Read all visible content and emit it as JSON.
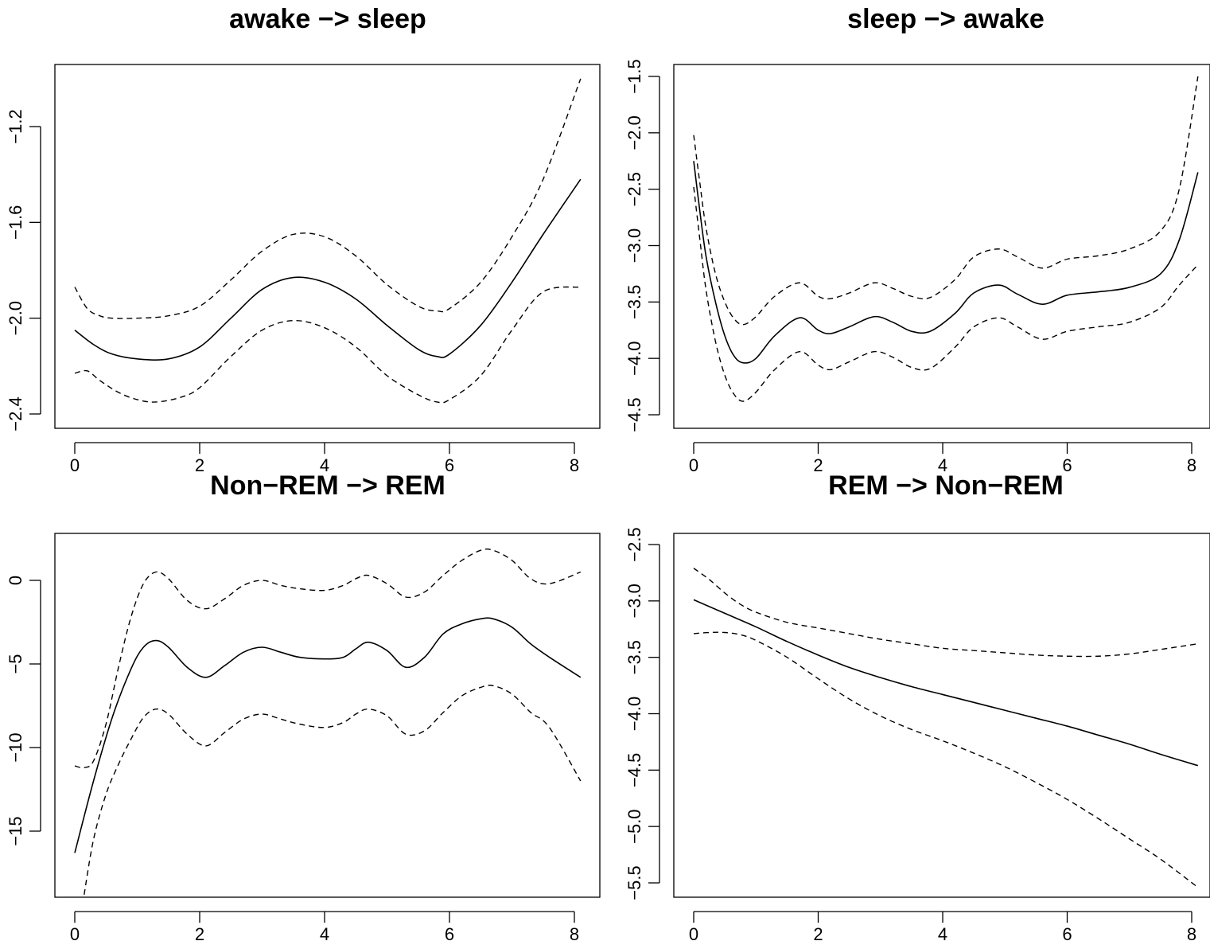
{
  "chart_data": [
    {
      "type": "line",
      "title": "awake −> sleep",
      "xlabel": "",
      "ylabel": "",
      "xlim": [
        0,
        8.1
      ],
      "ylim": [
        -2.4,
        -1.0
      ],
      "x_ticks": [
        "0",
        "2",
        "4",
        "6",
        "8"
      ],
      "y_ticks": [
        "−2.4",
        "−2.0",
        "−1.6",
        "−1.2"
      ],
      "grid": false,
      "series": [
        {
          "style": "solid",
          "x": [
            0,
            0.3,
            0.6,
            1.0,
            1.5,
            2.0,
            2.5,
            3.0,
            3.5,
            4.0,
            4.5,
            5.0,
            5.5,
            5.8,
            6.0,
            6.5,
            7.0,
            7.5,
            8.1
          ],
          "y": [
            -2.05,
            -2.11,
            -2.15,
            -2.17,
            -2.17,
            -2.12,
            -2.0,
            -1.88,
            -1.83,
            -1.85,
            -1.92,
            -2.03,
            -2.13,
            -2.16,
            -2.15,
            -2.03,
            -1.85,
            -1.65,
            -1.42
          ]
        },
        {
          "style": "dashed",
          "x": [
            0,
            0.2,
            0.4,
            0.6,
            1.0,
            1.5,
            2.0,
            2.5,
            3.0,
            3.5,
            4.0,
            4.5,
            5.0,
            5.5,
            5.8,
            6.0,
            6.5,
            7.0,
            7.5,
            8.1
          ],
          "y": [
            -1.87,
            -1.96,
            -1.99,
            -2.0,
            -2.0,
            -1.99,
            -1.95,
            -1.84,
            -1.72,
            -1.65,
            -1.66,
            -1.74,
            -1.86,
            -1.95,
            -1.97,
            -1.96,
            -1.85,
            -1.66,
            -1.42,
            -1.0
          ]
        },
        {
          "style": "dashed",
          "x": [
            0,
            0.2,
            0.4,
            0.7,
            1.0,
            1.3,
            1.7,
            2.0,
            2.5,
            3.0,
            3.5,
            4.0,
            4.5,
            5.0,
            5.5,
            5.8,
            6.0,
            6.5,
            7.0,
            7.5,
            8.1
          ],
          "y": [
            -2.23,
            -2.22,
            -2.26,
            -2.31,
            -2.34,
            -2.35,
            -2.33,
            -2.29,
            -2.16,
            -2.05,
            -2.01,
            -2.04,
            -2.12,
            -2.24,
            -2.32,
            -2.35,
            -2.34,
            -2.24,
            -2.05,
            -1.89,
            -1.87
          ]
        }
      ]
    },
    {
      "type": "line",
      "title": "sleep −> awake",
      "xlabel": "",
      "ylabel": "",
      "xlim": [
        0,
        8.1
      ],
      "ylim": [
        -4.6,
        -1.5
      ],
      "x_ticks": [
        "0",
        "2",
        "4",
        "6",
        "8"
      ],
      "y_ticks": [
        "−4.5",
        "−4.0",
        "−3.5",
        "−3.0",
        "−2.5",
        "−2.0",
        "−1.5"
      ],
      "grid": false,
      "series": [
        {
          "style": "solid",
          "x": [
            0,
            0.1,
            0.2,
            0.35,
            0.5,
            0.65,
            0.8,
            1.0,
            1.3,
            1.7,
            2.0,
            2.2,
            2.5,
            2.9,
            3.2,
            3.5,
            3.8,
            4.2,
            4.5,
            4.9,
            5.2,
            5.6,
            6.0,
            6.5,
            7.0,
            7.5,
            7.8,
            8.1
          ],
          "y": [
            -2.25,
            -2.7,
            -3.1,
            -3.5,
            -3.8,
            -3.98,
            -4.04,
            -4.0,
            -3.8,
            -3.64,
            -3.75,
            -3.78,
            -3.72,
            -3.63,
            -3.68,
            -3.76,
            -3.76,
            -3.6,
            -3.42,
            -3.35,
            -3.43,
            -3.52,
            -3.44,
            -3.41,
            -3.37,
            -3.25,
            -2.95,
            -2.35
          ]
        },
        {
          "style": "dashed",
          "x": [
            0,
            0.1,
            0.2,
            0.35,
            0.5,
            0.65,
            0.8,
            1.0,
            1.3,
            1.7,
            2.0,
            2.2,
            2.5,
            2.9,
            3.2,
            3.5,
            3.8,
            4.2,
            4.5,
            4.9,
            5.2,
            5.6,
            6.0,
            6.5,
            7.0,
            7.5,
            7.8,
            8.1
          ],
          "y": [
            -2.02,
            -2.45,
            -2.85,
            -3.25,
            -3.5,
            -3.65,
            -3.7,
            -3.63,
            -3.45,
            -3.33,
            -3.45,
            -3.47,
            -3.42,
            -3.33,
            -3.38,
            -3.45,
            -3.46,
            -3.3,
            -3.1,
            -3.03,
            -3.1,
            -3.2,
            -3.12,
            -3.09,
            -3.03,
            -2.87,
            -2.5,
            -1.5
          ]
        },
        {
          "style": "dashed",
          "x": [
            0,
            0.1,
            0.2,
            0.35,
            0.5,
            0.65,
            0.8,
            1.0,
            1.3,
            1.7,
            2.0,
            2.2,
            2.5,
            2.9,
            3.2,
            3.5,
            3.8,
            4.2,
            4.5,
            4.9,
            5.2,
            5.6,
            6.0,
            6.5,
            7.0,
            7.5,
            7.8,
            8.1
          ],
          "y": [
            -2.48,
            -2.95,
            -3.4,
            -3.85,
            -4.15,
            -4.32,
            -4.38,
            -4.3,
            -4.1,
            -3.94,
            -4.06,
            -4.1,
            -4.03,
            -3.94,
            -3.99,
            -4.08,
            -4.09,
            -3.9,
            -3.72,
            -3.64,
            -3.72,
            -3.83,
            -3.76,
            -3.72,
            -3.68,
            -3.55,
            -3.35,
            -3.17
          ]
        }
      ]
    },
    {
      "type": "line",
      "title": "Non−REM −> REM",
      "xlabel": "",
      "ylabel": "",
      "xlim": [
        0,
        8.1
      ],
      "ylim": [
        -19,
        2.5
      ],
      "x_ticks": [
        "0",
        "2",
        "4",
        "6",
        "8"
      ],
      "y_ticks": [
        "−15",
        "−10",
        "−5",
        "0"
      ],
      "grid": false,
      "series": [
        {
          "style": "solid",
          "x": [
            0,
            0.3,
            0.6,
            0.9,
            1.1,
            1.3,
            1.5,
            1.8,
            2.1,
            2.4,
            2.7,
            3.0,
            3.3,
            3.6,
            4.0,
            4.3,
            4.5,
            4.7,
            5.0,
            5.3,
            5.6,
            5.9,
            6.2,
            6.5,
            6.7,
            7.0,
            7.3,
            7.6,
            8.1
          ],
          "y": [
            -16.3,
            -12.0,
            -8.2,
            -5.3,
            -4.0,
            -3.6,
            -4.0,
            -5.2,
            -5.8,
            -5.1,
            -4.3,
            -4.0,
            -4.3,
            -4.6,
            -4.7,
            -4.6,
            -4.1,
            -3.7,
            -4.2,
            -5.2,
            -4.6,
            -3.2,
            -2.6,
            -2.3,
            -2.3,
            -2.8,
            -3.8,
            -4.6,
            -5.8
          ]
        },
        {
          "style": "dashed",
          "x": [
            0,
            0.15,
            0.3,
            0.5,
            0.7,
            0.9,
            1.1,
            1.3,
            1.5,
            1.8,
            2.1,
            2.4,
            2.7,
            3.0,
            3.3,
            3.6,
            4.0,
            4.3,
            4.5,
            4.7,
            5.0,
            5.3,
            5.6,
            5.9,
            6.2,
            6.5,
            6.7,
            7.0,
            7.3,
            7.6,
            8.1
          ],
          "y": [
            -11.1,
            -11.2,
            -10.8,
            -8.6,
            -5.2,
            -2.2,
            -0.2,
            0.5,
            0.1,
            -1.2,
            -1.7,
            -1.1,
            -0.3,
            0.0,
            -0.3,
            -0.5,
            -0.6,
            -0.3,
            0.1,
            0.3,
            -0.2,
            -1.0,
            -0.7,
            0.3,
            1.2,
            1.8,
            1.8,
            1.2,
            0.1,
            -0.2,
            0.5
          ]
        },
        {
          "style": "dashed",
          "x": [
            0.15,
            0.3,
            0.5,
            0.7,
            0.9,
            1.1,
            1.3,
            1.5,
            1.8,
            2.1,
            2.4,
            2.7,
            3.0,
            3.3,
            3.6,
            4.0,
            4.3,
            4.5,
            4.7,
            5.0,
            5.3,
            5.6,
            5.9,
            6.2,
            6.5,
            6.7,
            7.0,
            7.3,
            7.6,
            8.1
          ],
          "y": [
            -18.8,
            -15.5,
            -12.8,
            -11.0,
            -9.5,
            -8.2,
            -7.7,
            -8.0,
            -9.2,
            -9.9,
            -9.1,
            -8.3,
            -8.0,
            -8.3,
            -8.6,
            -8.8,
            -8.5,
            -8.0,
            -7.7,
            -8.1,
            -9.2,
            -9.0,
            -7.9,
            -6.9,
            -6.4,
            -6.3,
            -6.8,
            -7.9,
            -8.8,
            -12.0
          ]
        }
      ]
    },
    {
      "type": "line",
      "title": "REM −> Non−REM",
      "xlabel": "",
      "ylabel": "",
      "xlim": [
        0,
        8.1
      ],
      "ylim": [
        -5.6,
        -2.5
      ],
      "x_ticks": [
        "0",
        "2",
        "4",
        "6",
        "8"
      ],
      "y_ticks": [
        "−5.5",
        "−5.0",
        "−4.5",
        "−4.0",
        "−3.5",
        "−3.0",
        "−2.5"
      ],
      "grid": false,
      "series": [
        {
          "style": "solid",
          "x": [
            0,
            0.5,
            1.0,
            1.5,
            2.0,
            2.5,
            3.0,
            3.5,
            4.0,
            4.5,
            5.0,
            5.5,
            6.0,
            6.5,
            7.0,
            7.5,
            8.1
          ],
          "y": [
            -2.99,
            -3.11,
            -3.23,
            -3.36,
            -3.48,
            -3.59,
            -3.68,
            -3.76,
            -3.83,
            -3.9,
            -3.97,
            -4.04,
            -4.11,
            -4.19,
            -4.27,
            -4.36,
            -4.46
          ]
        },
        {
          "style": "dashed",
          "x": [
            0,
            0.25,
            0.5,
            0.75,
            1.0,
            1.5,
            2.0,
            2.5,
            3.0,
            3.5,
            4.0,
            4.5,
            5.0,
            5.5,
            6.0,
            6.5,
            7.0,
            7.5,
            8.1
          ],
          "y": [
            -2.71,
            -2.81,
            -2.93,
            -3.03,
            -3.1,
            -3.19,
            -3.24,
            -3.29,
            -3.34,
            -3.38,
            -3.42,
            -3.44,
            -3.46,
            -3.48,
            -3.49,
            -3.49,
            -3.47,
            -3.43,
            -3.38
          ]
        },
        {
          "style": "dashed",
          "x": [
            0,
            0.25,
            0.5,
            0.75,
            1.0,
            1.5,
            2.0,
            2.5,
            3.0,
            3.5,
            4.0,
            4.5,
            5.0,
            5.5,
            6.0,
            6.5,
            7.0,
            7.5,
            8.1
          ],
          "y": [
            -3.29,
            -3.28,
            -3.28,
            -3.3,
            -3.35,
            -3.5,
            -3.69,
            -3.87,
            -4.02,
            -4.14,
            -4.24,
            -4.35,
            -4.47,
            -4.61,
            -4.76,
            -4.93,
            -5.11,
            -5.29,
            -5.54
          ]
        }
      ]
    }
  ]
}
